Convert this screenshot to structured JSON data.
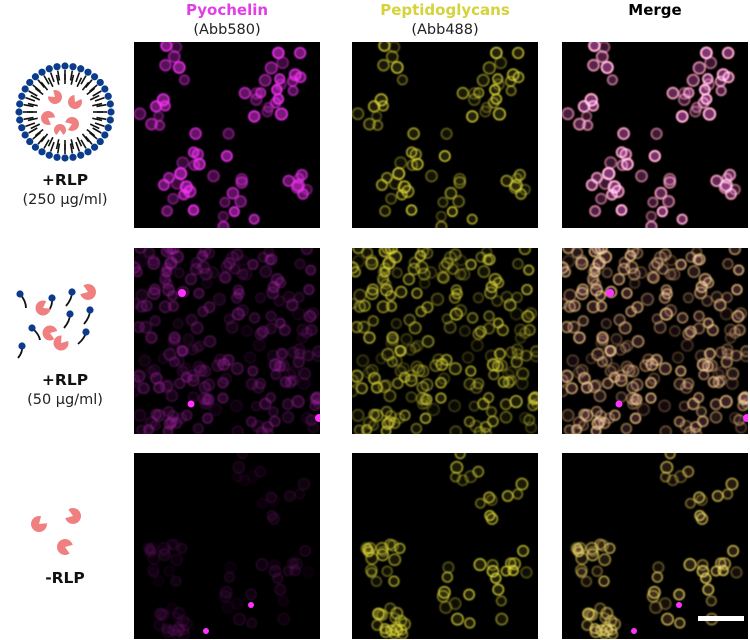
{
  "columns": [
    {
      "name": "Pyochelin",
      "sub": "(Abb580)",
      "color": "#e040e0"
    },
    {
      "name": "Peptidoglycans",
      "sub": "(Abb488)",
      "color": "#d4cf2a"
    },
    {
      "name": "Merge",
      "sub": "",
      "color": "#000000"
    }
  ],
  "rows": [
    {
      "name": "+RLP",
      "sub": "(250 µg/ml)",
      "icon": "liposome-with-enzymes-icon"
    },
    {
      "name": "+RLP",
      "sub": "(50 µg/ml)",
      "icon": "free-lipids-and-enzymes-icon"
    },
    {
      "name": "-RLP",
      "sub": "",
      "icon": "enzymes-only-icon"
    }
  ],
  "colors": {
    "magenta": "#ff33ff",
    "yellow": "#e8e23a",
    "enzyme": "#f08080",
    "lipid_head": "#0b3c8c",
    "panel_bg": "#000000"
  },
  "scale_bar": true
}
